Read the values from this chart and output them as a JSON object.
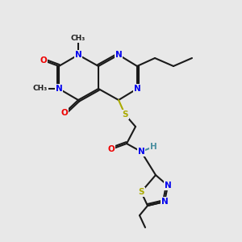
{
  "bg_color": "#e8e8e8",
  "bond_color": "#1a1a1a",
  "N_color": "#0000ee",
  "O_color": "#ee0000",
  "S_color": "#aaaa00",
  "H_color": "#4a8fa0",
  "lw": 1.5,
  "font_size": 7.5,
  "font_size_small": 6.5
}
